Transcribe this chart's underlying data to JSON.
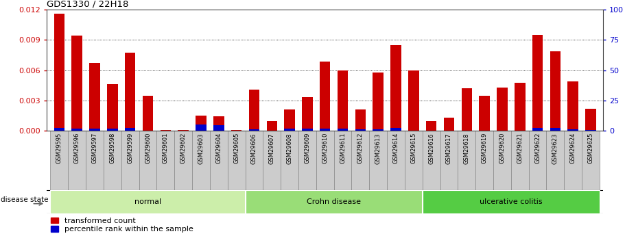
{
  "title": "GDS1330 / 22H18",
  "samples": [
    "GSM29595",
    "GSM29596",
    "GSM29597",
    "GSM29598",
    "GSM29599",
    "GSM29600",
    "GSM29601",
    "GSM29602",
    "GSM29603",
    "GSM29604",
    "GSM29605",
    "GSM29606",
    "GSM29607",
    "GSM29608",
    "GSM29609",
    "GSM29610",
    "GSM29611",
    "GSM29612",
    "GSM29613",
    "GSM29614",
    "GSM29615",
    "GSM29616",
    "GSM29617",
    "GSM29618",
    "GSM29619",
    "GSM29620",
    "GSM29621",
    "GSM29622",
    "GSM29623",
    "GSM29624",
    "GSM29625"
  ],
  "red_values": [
    0.01155,
    0.0094,
    0.0067,
    0.0046,
    0.00775,
    0.00345,
    0.0001,
    0.0001,
    0.00155,
    0.00145,
    0.0001,
    0.0041,
    0.00095,
    0.00215,
    0.00335,
    0.00685,
    0.006,
    0.0021,
    0.0058,
    0.0085,
    0.006,
    0.00095,
    0.0013,
    0.0042,
    0.0035,
    0.0043,
    0.00475,
    0.0095,
    0.0079,
    0.0049,
    0.0022
  ],
  "blue_values": [
    0.00033,
    0.00025,
    0.00022,
    0.00023,
    0.00028,
    0.0,
    0.0,
    0.0,
    0.00062,
    0.0006,
    0.0,
    0.00015,
    0.0,
    0.00022,
    0.00022,
    0.00022,
    0.00022,
    0.00015,
    0.00015,
    0.00028,
    0.0,
    0.0,
    0.0,
    0.0,
    0.0,
    0.0,
    0.0,
    0.0003,
    0.00028,
    0.00015,
    0.00012
  ],
  "groups": [
    {
      "label": "normal",
      "start": 0,
      "end": 10,
      "color": "#cceeaa"
    },
    {
      "label": "Crohn disease",
      "start": 11,
      "end": 20,
      "color": "#99dd77"
    },
    {
      "label": "ulcerative colitis",
      "start": 21,
      "end": 30,
      "color": "#55cc44"
    }
  ],
  "ylim_left": [
    0,
    0.012
  ],
  "ylim_right": [
    0,
    100
  ],
  "yticks_left": [
    0,
    0.003,
    0.006,
    0.009,
    0.012
  ],
  "yticks_right": [
    0,
    25,
    50,
    75,
    100
  ],
  "left_color": "#cc0000",
  "right_color": "#0000cc",
  "bar_width": 0.6,
  "background_color": "#ffffff",
  "legend_red": "transformed count",
  "legend_blue": "percentile rank within the sample",
  "disease_state_label": "disease state",
  "xlim": [
    -0.7,
    30.7
  ],
  "label_bg_color": "#bbbbbb",
  "label_border_color": "#888888"
}
